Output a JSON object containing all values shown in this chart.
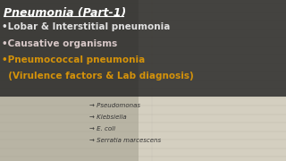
{
  "title": "Pneumonia (Part-1)",
  "bullet1": "•Lobar & Interstitial pneumonia",
  "bullet2": "•Causative organisms",
  "bullet3": "•Pneumococcal pneumonia",
  "bullet4": "  (Virulence factors & Lab diagnosis)",
  "handwritten_lines": [
    "→ Pseudomonas",
    "→ Klebsiella",
    "→ E. coli",
    "→ Serratia marcescens"
  ],
  "overlay_bg": "#1c1c1c",
  "overlay_alpha": 0.78,
  "title_color": "#ffffff",
  "bullet12_color": "#e0e0e0",
  "bullet34_color": "#d4920a",
  "handwritten_color": "#333333",
  "bg_color": "#b8b4a4",
  "bg_right_color": "#d4cfc0",
  "figsize": [
    3.2,
    1.8
  ],
  "dpi": 100
}
